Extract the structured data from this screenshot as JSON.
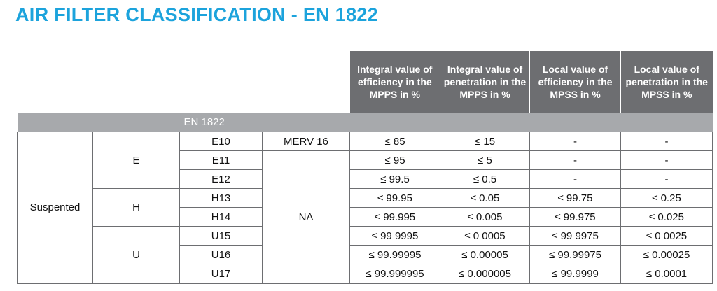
{
  "title": "AIR FILTER CLASSIFICATION - EN 1822",
  "headers": [
    "Integral value of efficiency in the MPPS in %",
    "Integral value of penetration in the MPPS in %",
    "Local value of efficiency in the MPSS in %",
    "Local value of penetration in the MPSS in %"
  ],
  "band_label": "EN 1822",
  "group": "Suspented",
  "classes": {
    "E": "E",
    "H": "H",
    "U": "U"
  },
  "merv": {
    "first": "MERV 16",
    "rest": "NA"
  },
  "rows": [
    {
      "cls": "E10",
      "v1": "≤ 85",
      "v2": "≤ 15",
      "v3": "-",
      "v4": "-"
    },
    {
      "cls": "E11",
      "v1": "≤ 95",
      "v2": "≤ 5",
      "v3": "-",
      "v4": "-"
    },
    {
      "cls": "E12",
      "v1": "≤ 99.5",
      "v2": "≤ 0.5",
      "v3": "-",
      "v4": "-"
    },
    {
      "cls": "H13",
      "v1": "≤ 99.95",
      "v2": "≤ 0.05",
      "v3": "≤ 99.75",
      "v4": "≤ 0.25"
    },
    {
      "cls": "H14",
      "v1": "≤ 99.995",
      "v2": "≤ 0.005",
      "v3": "≤ 99.975",
      "v4": "≤ 0.025"
    },
    {
      "cls": "U15",
      "v1": "≤ 99 9995",
      "v2": "≤ 0 0005",
      "v3": "≤ 99 9975",
      "v4": "≤ 0 0025"
    },
    {
      "cls": "U16",
      "v1": "≤ 99.99995",
      "v2": "≤ 0.00005",
      "v3": "≤ 99.99975",
      "v4": "≤ 0.00025"
    },
    {
      "cls": "U17",
      "v1": "≤ 99.999995",
      "v2": "≤ 0.000005",
      "v3": "≤ 99.9999",
      "v4": "≤ 0.0001"
    }
  ]
}
